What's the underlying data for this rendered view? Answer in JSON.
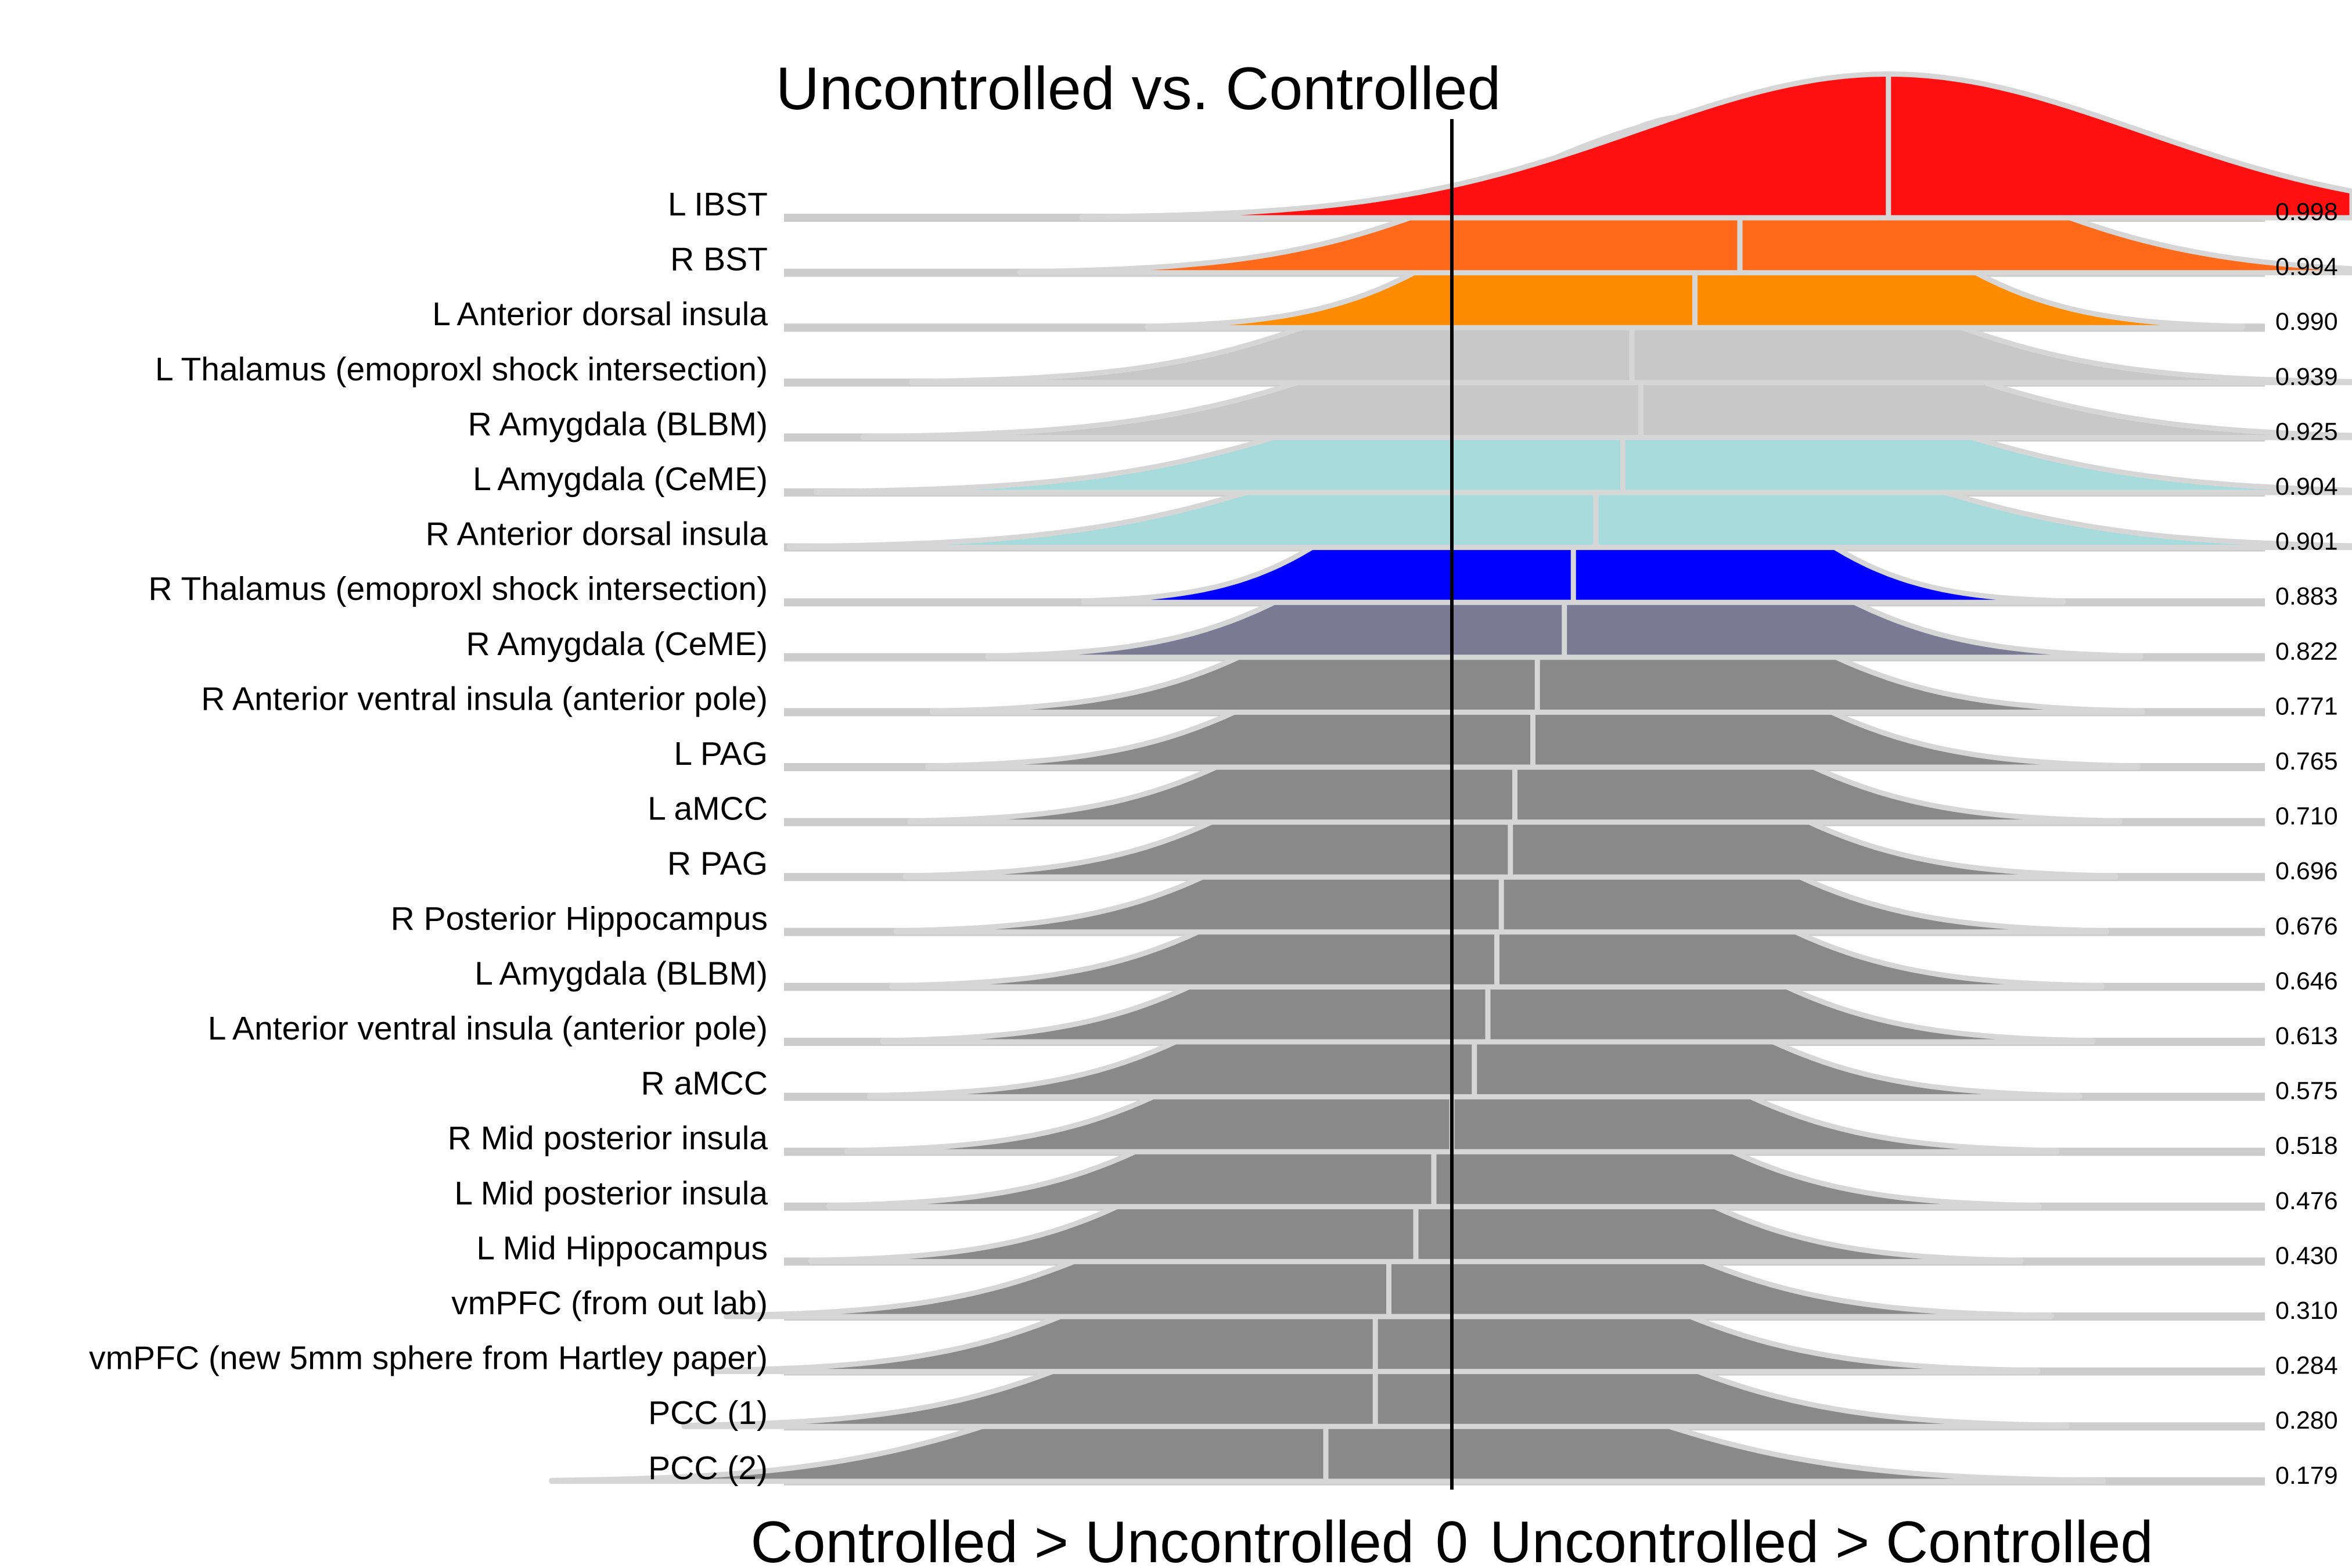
{
  "chart_data": {
    "type": "area",
    "subtype": "ridgeline",
    "title": "Uncontrolled vs. Controlled",
    "x_axis": {
      "left_label": "Controlled > Uncontrolled",
      "zero_label": "0",
      "right_label": "Uncontrolled > Controlled",
      "xlim": [
        -1,
        1
      ]
    },
    "colors": {
      "red": "#ff1010",
      "orange_red": "#ff6a1a",
      "orange": "#ff8c00",
      "light_gray": "#c8c8c8",
      "light_cyan": "#a8dcdc",
      "blue": "#0000ff",
      "slate": "#7a7a94",
      "gray": "#898989",
      "outline": "#d6d6d6",
      "baseline": "#cccccc",
      "zero_line": "#000000"
    },
    "series": [
      {
        "label": "L IBST",
        "prob": "0.998",
        "median": 0.485,
        "sd": 0.28,
        "color": "red"
      },
      {
        "label": "R BST",
        "prob": "0.994",
        "median": 0.32,
        "sd": 0.25,
        "color": "orange_red"
      },
      {
        "label": "L Anterior dorsal insula",
        "prob": "0.990",
        "median": 0.27,
        "sd": 0.19,
        "color": "orange"
      },
      {
        "label": "L Thalamus (emoproxl shock intersection)",
        "prob": "0.939",
        "median": 0.2,
        "sd": 0.25,
        "color": "light_gray"
      },
      {
        "label": "R Amygdala (BLBM)",
        "prob": "0.925",
        "median": 0.21,
        "sd": 0.27,
        "color": "light_gray"
      },
      {
        "label": "L Amygdala (CeME)",
        "prob": "0.904",
        "median": 0.19,
        "sd": 0.28,
        "color": "light_cyan"
      },
      {
        "label": "R Anterior dorsal insula",
        "prob": "0.901",
        "median": 0.16,
        "sd": 0.28,
        "color": "light_cyan"
      },
      {
        "label": "R Thalamus (emoproxl shock intersection)",
        "prob": "0.883",
        "median": 0.135,
        "sd": 0.17,
        "color": "blue"
      },
      {
        "label": "R Amygdala (CeME)",
        "prob": "0.822",
        "median": 0.125,
        "sd": 0.2,
        "color": "slate"
      },
      {
        "label": "R Anterior ventral insula (anterior pole)",
        "prob": "0.771",
        "median": 0.095,
        "sd": 0.21,
        "color": "gray"
      },
      {
        "label": "L PAG",
        "prob": "0.765",
        "median": 0.09,
        "sd": 0.21,
        "color": "gray"
      },
      {
        "label": "L aMCC",
        "prob": "0.710",
        "median": 0.07,
        "sd": 0.21,
        "color": "gray"
      },
      {
        "label": "R PAG",
        "prob": "0.696",
        "median": 0.065,
        "sd": 0.21,
        "color": "gray"
      },
      {
        "label": "R Posterior Hippocampus",
        "prob": "0.676",
        "median": 0.055,
        "sd": 0.21,
        "color": "gray"
      },
      {
        "label": "L Amygdala (BLBM)",
        "prob": "0.646",
        "median": 0.05,
        "sd": 0.21,
        "color": "gray"
      },
      {
        "label": "L Anterior ventral insula (anterior pole)",
        "prob": "0.613",
        "median": 0.04,
        "sd": 0.21,
        "color": "gray"
      },
      {
        "label": "R aMCC",
        "prob": "0.575",
        "median": 0.025,
        "sd": 0.21,
        "color": "gray"
      },
      {
        "label": "R Mid posterior insula",
        "prob": "0.518",
        "median": 0.0,
        "sd": 0.21,
        "color": "gray"
      },
      {
        "label": "L Mid posterior insula",
        "prob": "0.476",
        "median": -0.02,
        "sd": 0.21,
        "color": "gray"
      },
      {
        "label": "L Mid Hippocampus",
        "prob": "0.430",
        "median": -0.04,
        "sd": 0.21,
        "color": "gray"
      },
      {
        "label": "vmPFC (from out lab)",
        "prob": "0.310",
        "median": -0.07,
        "sd": 0.23,
        "color": "gray"
      },
      {
        "label": "vmPFC (new 5mm sphere from Hartley paper)",
        "prob": "0.284",
        "median": -0.085,
        "sd": 0.23,
        "color": "gray"
      },
      {
        "label": "PCC (1)",
        "prob": "0.280",
        "median": -0.085,
        "sd": 0.24,
        "color": "gray"
      },
      {
        "label": "PCC (2)",
        "prob": "0.179",
        "median": -0.14,
        "sd": 0.27,
        "color": "gray"
      }
    ]
  }
}
